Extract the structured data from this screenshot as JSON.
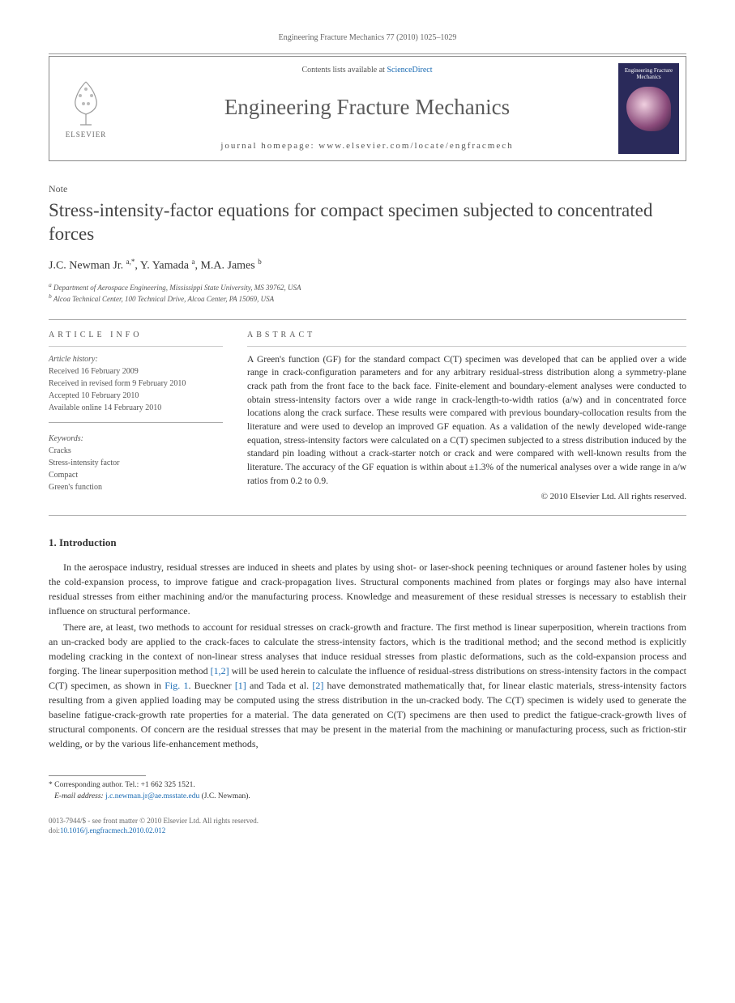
{
  "header": {
    "citation": "Engineering Fracture Mechanics 77 (2010) 1025–1029",
    "contents_prefix": "Contents lists available at ",
    "contents_link": "ScienceDirect",
    "journal_name": "Engineering Fracture Mechanics",
    "homepage_prefix": "journal homepage: ",
    "homepage_url": "www.elsevier.com/locate/engfracmech",
    "publisher": "ELSEVIER",
    "cover_title": "Engineering Fracture Mechanics"
  },
  "article": {
    "type_label": "Note",
    "title": "Stress-intensity-factor equations for compact specimen subjected to concentrated forces",
    "authors_html": "J.C. Newman Jr. <sup>a,*</sup>, Y. Yamada <sup>a</sup>, M.A. James <sup>b</sup>",
    "affiliations": [
      "a Department of Aerospace Engineering, Mississippi State University, MS 39762, USA",
      "b Alcoa Technical Center, 100 Technical Drive, Alcoa Center, PA 15069, USA"
    ]
  },
  "info": {
    "heading": "ARTICLE INFO",
    "history_label": "Article history:",
    "history": [
      "Received 16 February 2009",
      "Received in revised form 9 February 2010",
      "Accepted 10 February 2010",
      "Available online 14 February 2010"
    ],
    "keywords_label": "Keywords:",
    "keywords": [
      "Cracks",
      "Stress-intensity factor",
      "Compact",
      "Green's function"
    ]
  },
  "abstract": {
    "heading": "ABSTRACT",
    "text": "A Green's function (GF) for the standard compact C(T) specimen was developed that can be applied over a wide range in crack-configuration parameters and for any arbitrary residual-stress distribution along a symmetry-plane crack path from the front face to the back face. Finite-element and boundary-element analyses were conducted to obtain stress-intensity factors over a wide range in crack-length-to-width ratios (a/w) and in concentrated force locations along the crack surface. These results were compared with previous boundary-collocation results from the literature and were used to develop an improved GF equation. As a validation of the newly developed wide-range equation, stress-intensity factors were calculated on a C(T) specimen subjected to a stress distribution induced by the standard pin loading without a crack-starter notch or crack and were compared with well-known results from the literature. The accuracy of the GF equation is within about ±1.3% of the numerical analyses over a wide range in a/w ratios from 0.2 to 0.9.",
    "copyright": "© 2010 Elsevier Ltd. All rights reserved."
  },
  "body": {
    "section_number": "1.",
    "section_title": "Introduction",
    "p1": "In the aerospace industry, residual stresses are induced in sheets and plates by using shot- or laser-shock peening techniques or around fastener holes by using the cold-expansion process, to improve fatigue and crack-propagation lives. Structural components machined from plates or forgings may also have internal residual stresses from either machining and/or the manufacturing process. Knowledge and measurement of these residual stresses is necessary to establish their influence on structural performance.",
    "p2_a": "There are, at least, two methods to account for residual stresses on crack-growth and fracture. The first method is linear superposition, wherein tractions from an un-cracked body are applied to the crack-faces to calculate the stress-intensity factors, which is the traditional method; and the second method is explicitly modeling cracking in the context of non-linear stress analyses that induce residual stresses from plastic deformations, such as the cold-expansion process and forging. The linear superposition method ",
    "ref12": "[1,2]",
    "p2_b": " will be used herein to calculate the influence of residual-stress distributions on stress-intensity factors in the compact C(T) specimen, as shown in ",
    "fig1": "Fig. 1",
    "p2_c": ". Bueckner ",
    "ref1": "[1]",
    "p2_d": " and Tada et al. ",
    "ref2": "[2]",
    "p2_e": " have demonstrated mathematically that, for linear elastic materials, stress-intensity factors resulting from a given applied loading may be computed using the stress distribution in the un-cracked body. The C(T) specimen is widely used to generate the baseline fatigue-crack-growth rate properties for a material. The data generated on C(T) specimens are then used to predict the fatigue-crack-growth lives of structural components. Of concern are the residual stresses that may be present in the material from the machining or manufacturing process, such as friction-stir welding, or by the various life-enhancement methods,"
  },
  "footnote": {
    "corr_label": "* Corresponding author. Tel.: +1 662 325 1521.",
    "email_label": "E-mail address: ",
    "email": "j.c.newman.jr@ae.msstate.edu",
    "email_who": " (J.C. Newman)."
  },
  "footer": {
    "issn": "0013-7944/$ - see front matter © 2010 Elsevier Ltd. All rights reserved.",
    "doi_label": "doi:",
    "doi": "10.1016/j.engfracmech.2010.02.012"
  }
}
